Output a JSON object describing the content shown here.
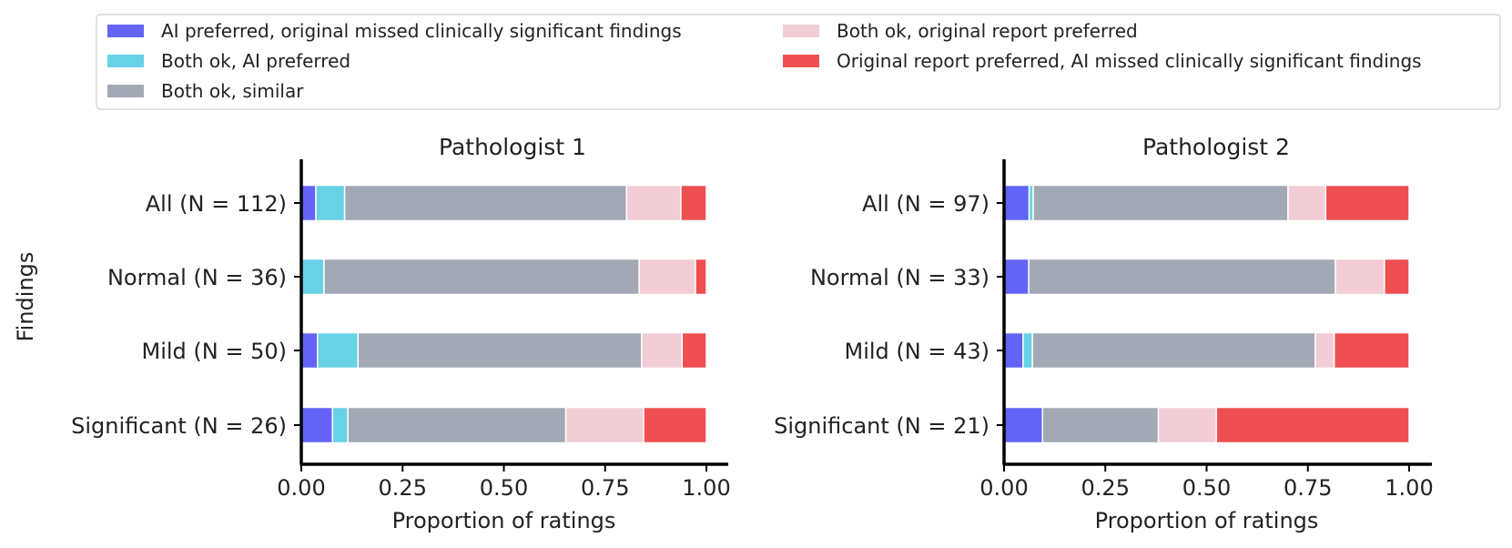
{
  "chart_data": {
    "type": "bar",
    "orientation": "horizontal",
    "stacked": true,
    "ylabel": "Findings",
    "xlabel": "Proportion of ratings",
    "xlim": [
      0,
      1
    ],
    "xticks": [
      "0.00",
      "0.25",
      "0.50",
      "0.75",
      "1.00"
    ],
    "grid": false,
    "legend": {
      "placement": "top",
      "entries": [
        {
          "name": "AI preferred, original missed clinically significant findings",
          "color": "#6464f8"
        },
        {
          "name": "Both ok, AI preferred",
          "color": "#67d2e6"
        },
        {
          "name": "Both ok, similar",
          "color": "#a3a9b4"
        },
        {
          "name": "Both ok, original report preferred",
          "color": "#f2cdd5"
        },
        {
          "name": "Original report preferred, AI missed clinically significant findings",
          "color": "#ee4f50"
        }
      ]
    },
    "panels": [
      {
        "title": "Pathologist 1",
        "categories": [
          "All (N = 112)",
          "Normal (N = 36)",
          "Mild (N = 50)",
          "Significant (N = 26)"
        ],
        "series": [
          {
            "name": "AI preferred, original missed clinically significant findings",
            "values": [
              0.036,
              0.0,
              0.04,
              0.077
            ]
          },
          {
            "name": "Both ok, AI preferred",
            "values": [
              0.071,
              0.056,
              0.1,
              0.038
            ]
          },
          {
            "name": "Both ok, similar",
            "values": [
              0.696,
              0.778,
              0.7,
              0.538
            ]
          },
          {
            "name": "Both ok, original report preferred",
            "values": [
              0.134,
              0.139,
              0.1,
              0.192
            ]
          },
          {
            "name": "Original report preferred, AI missed clinically significant findings",
            "values": [
              0.063,
              0.027,
              0.06,
              0.155
            ]
          }
        ]
      },
      {
        "title": "Pathologist 2",
        "categories": [
          "All (N = 97)",
          "Normal (N = 33)",
          "Mild (N = 43)",
          "Significant (N = 21)"
        ],
        "series": [
          {
            "name": "AI preferred, original missed clinically significant findings",
            "values": [
              0.062,
              0.061,
              0.047,
              0.095
            ]
          },
          {
            "name": "Both ok, AI preferred",
            "values": [
              0.01,
              0.0,
              0.023,
              0.0
            ]
          },
          {
            "name": "Both ok, similar",
            "values": [
              0.629,
              0.757,
              0.698,
              0.286
            ]
          },
          {
            "name": "Both ok, original report preferred",
            "values": [
              0.093,
              0.121,
              0.047,
              0.143
            ]
          },
          {
            "name": "Original report preferred, AI missed clinically significant findings",
            "values": [
              0.206,
              0.061,
              0.185,
              0.476
            ]
          }
        ]
      }
    ]
  }
}
